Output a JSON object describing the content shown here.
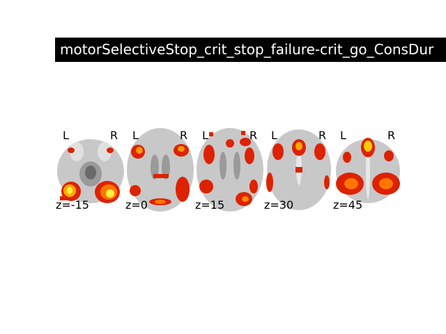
{
  "figure": {
    "title": "motorSelectiveStop_crit_stop_failure-crit_go_ConsDur",
    "orientation_left": "L",
    "orientation_right": "R"
  },
  "slices": [
    {
      "z_label": "z=-15"
    },
    {
      "z_label": "z=0"
    },
    {
      "z_label": "z=15"
    },
    {
      "z_label": "z=30"
    },
    {
      "z_label": "z=45"
    }
  ],
  "colors": {
    "background": "#ffffff",
    "title_bg": "#000000",
    "title_fg": "#ffffff",
    "brain_gray": "#c8c8c8",
    "activation_low": "#cc1100",
    "activation_mid": "#ff5500",
    "activation_high": "#ffee44"
  }
}
